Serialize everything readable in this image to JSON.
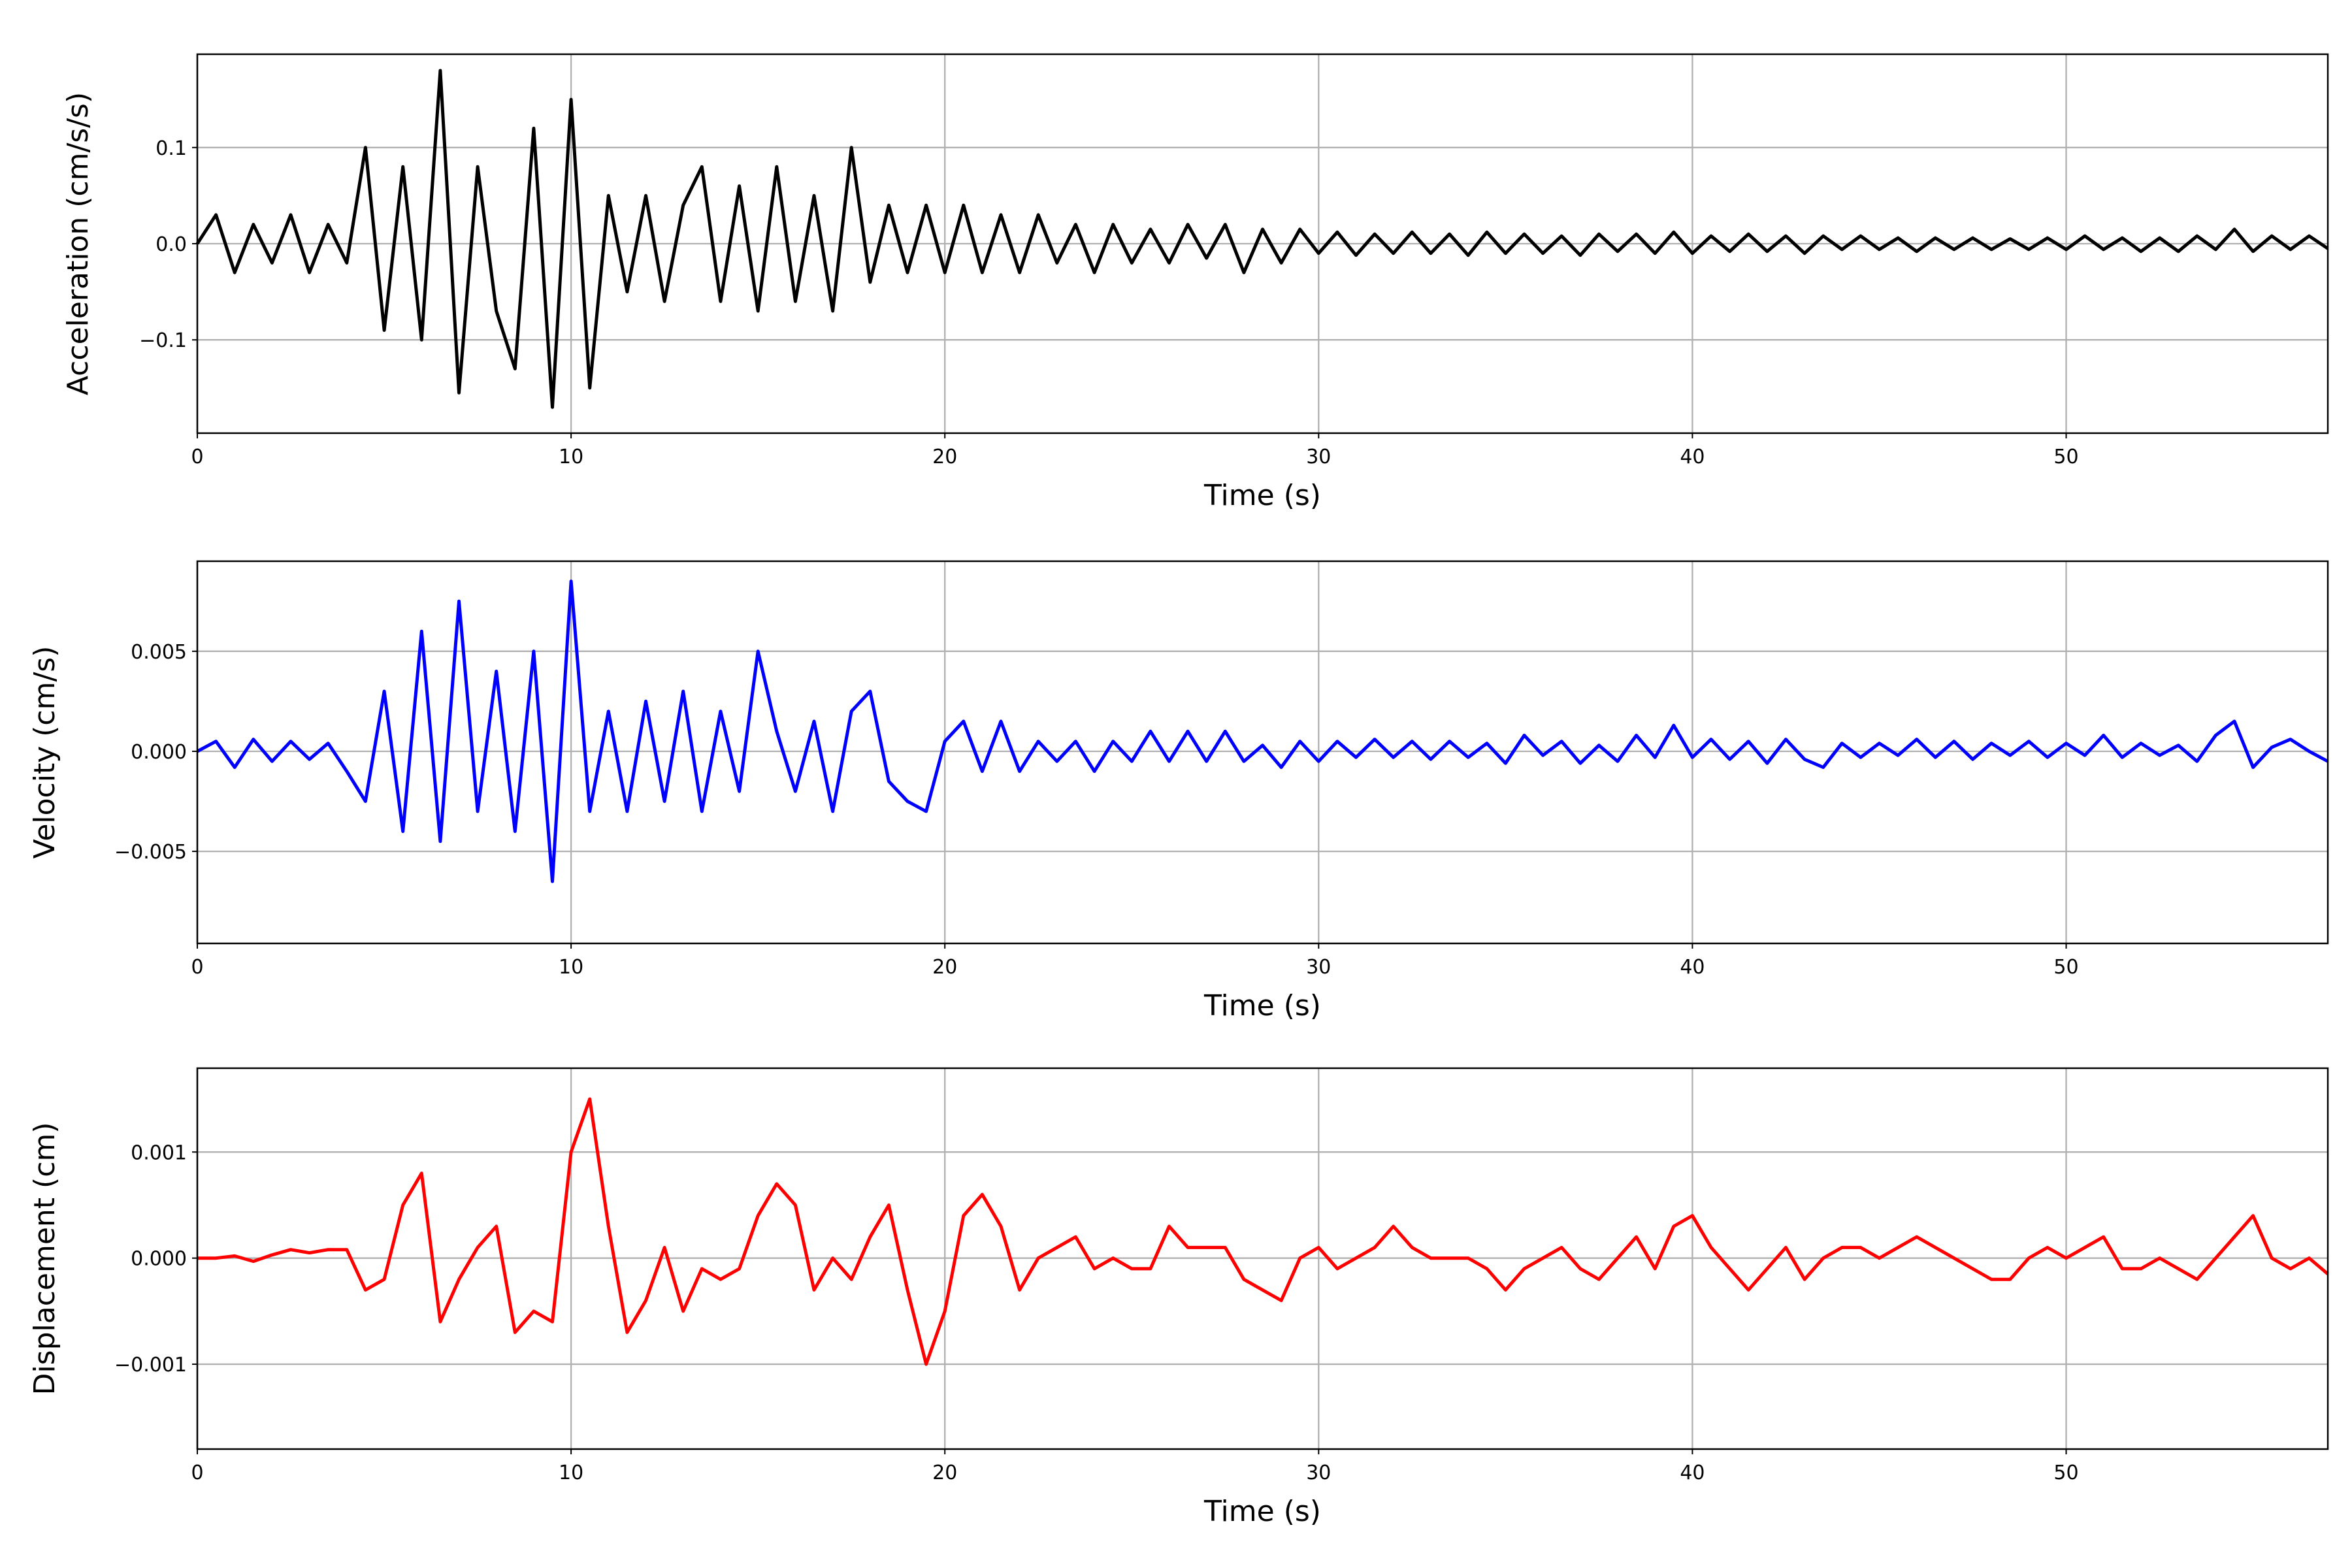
{
  "chart_data": [
    {
      "type": "line",
      "x_label": "Time (s)",
      "y_label": "Acceleration (cm/s/s)",
      "color": "#000000",
      "grid": true,
      "xlim": [
        0,
        57
      ],
      "ylim": [
        -0.197,
        0.197
      ],
      "xticks": [
        0,
        10,
        20,
        30,
        40,
        50
      ],
      "yticks": [
        {
          "value": -0.1,
          "label": "−0.1"
        },
        {
          "value": 0,
          "label": "0.0"
        },
        {
          "value": 0.1,
          "label": "0.1"
        }
      ],
      "x": [
        0,
        0.5,
        1,
        1.5,
        2,
        2.5,
        3,
        3.5,
        4,
        4.5,
        5,
        5.5,
        6,
        6.5,
        7,
        7.5,
        8,
        8.5,
        9,
        9.5,
        10,
        10.5,
        11,
        11.5,
        12,
        12.5,
        13,
        13.5,
        14,
        14.5,
        15,
        15.5,
        16,
        16.5,
        17,
        17.5,
        18,
        18.5,
        19,
        19.5,
        20,
        20.5,
        21,
        21.5,
        22,
        22.5,
        23,
        23.5,
        24,
        24.5,
        25,
        25.5,
        26,
        26.5,
        27,
        27.5,
        28,
        28.5,
        29,
        29.5,
        30,
        30.5,
        31,
        31.5,
        32,
        32.5,
        33,
        33.5,
        34,
        34.5,
        35,
        35.5,
        36,
        36.5,
        37,
        37.5,
        38,
        38.5,
        39,
        39.5,
        40,
        40.5,
        41,
        41.5,
        42,
        42.5,
        43,
        43.5,
        44,
        44.5,
        45,
        45.5,
        46,
        46.5,
        47,
        47.5,
        48,
        48.5,
        49,
        49.5,
        50,
        50.5,
        51,
        51.5,
        52,
        52.5,
        53,
        53.5,
        54,
        54.5,
        55,
        55.5,
        56,
        56.5,
        57
      ],
      "values": [
        0,
        0.03,
        -0.03,
        0.02,
        -0.02,
        0.03,
        -0.03,
        0.02,
        -0.02,
        0.1,
        -0.09,
        0.08,
        -0.1,
        0.18,
        -0.155,
        0.08,
        -0.07,
        -0.13,
        0.12,
        -0.17,
        0.15,
        -0.15,
        0.05,
        -0.05,
        0.05,
        -0.06,
        0.04,
        0.08,
        -0.06,
        0.06,
        -0.07,
        0.08,
        -0.06,
        0.05,
        -0.07,
        0.1,
        -0.04,
        0.04,
        -0.03,
        0.04,
        -0.03,
        0.04,
        -0.03,
        0.03,
        -0.03,
        0.03,
        -0.02,
        0.02,
        -0.03,
        0.02,
        -0.02,
        0.015,
        -0.02,
        0.02,
        -0.015,
        0.02,
        -0.03,
        0.015,
        -0.02,
        0.015,
        -0.01,
        0.012,
        -0.012,
        0.01,
        -0.01,
        0.012,
        -0.01,
        0.01,
        -0.012,
        0.012,
        -0.01,
        0.01,
        -0.01,
        0.008,
        -0.012,
        0.01,
        -0.008,
        0.01,
        -0.01,
        0.012,
        -0.01,
        0.008,
        -0.008,
        0.01,
        -0.008,
        0.008,
        -0.01,
        0.008,
        -0.006,
        0.008,
        -0.006,
        0.006,
        -0.008,
        0.006,
        -0.006,
        0.006,
        -0.006,
        0.005,
        -0.006,
        0.006,
        -0.006,
        0.008,
        -0.006,
        0.006,
        -0.008,
        0.006,
        -0.008,
        0.008,
        -0.006,
        0.015,
        -0.008,
        0.008,
        -0.006,
        0.008,
        -0.005
      ]
    },
    {
      "type": "line",
      "x_label": "Time (s)",
      "y_label": "Velocity (cm/s)",
      "color": "#0000ff",
      "grid": true,
      "xlim": [
        0,
        57
      ],
      "ylim": [
        -0.0096,
        0.0095
      ],
      "xticks": [
        0,
        10,
        20,
        30,
        40,
        50
      ],
      "yticks": [
        {
          "value": -0.005,
          "label": "−0.005"
        },
        {
          "value": 0,
          "label": "0.000"
        },
        {
          "value": 0.005,
          "label": "0.005"
        }
      ],
      "x": [
        0,
        0.5,
        1,
        1.5,
        2,
        2.5,
        3,
        3.5,
        4,
        4.5,
        5,
        5.5,
        6,
        6.5,
        7,
        7.5,
        8,
        8.5,
        9,
        9.5,
        10,
        10.5,
        11,
        11.5,
        12,
        12.5,
        13,
        13.5,
        14,
        14.5,
        15,
        15.5,
        16,
        16.5,
        17,
        17.5,
        18,
        18.5,
        19,
        19.5,
        20,
        20.5,
        21,
        21.5,
        22,
        22.5,
        23,
        23.5,
        24,
        24.5,
        25,
        25.5,
        26,
        26.5,
        27,
        27.5,
        28,
        28.5,
        29,
        29.5,
        30,
        30.5,
        31,
        31.5,
        32,
        32.5,
        33,
        33.5,
        34,
        34.5,
        35,
        35.5,
        36,
        36.5,
        37,
        37.5,
        38,
        38.5,
        39,
        39.5,
        40,
        40.5,
        41,
        41.5,
        42,
        42.5,
        43,
        43.5,
        44,
        44.5,
        45,
        45.5,
        46,
        46.5,
        47,
        47.5,
        48,
        48.5,
        49,
        49.5,
        50,
        50.5,
        51,
        51.5,
        52,
        52.5,
        53,
        53.5,
        54,
        54.5,
        55,
        55.5,
        56,
        56.5,
        57
      ],
      "values": [
        0,
        0.0005,
        -0.0008,
        0.0006,
        -0.0005,
        0.0005,
        -0.0004,
        0.0004,
        -0.001,
        -0.0025,
        0.003,
        -0.004,
        0.006,
        -0.0045,
        0.0075,
        -0.003,
        0.004,
        -0.004,
        0.005,
        -0.0065,
        0.0085,
        -0.003,
        0.002,
        -0.003,
        0.0025,
        -0.0025,
        0.003,
        -0.003,
        0.002,
        -0.002,
        0.005,
        0.001,
        -0.002,
        0.0015,
        -0.003,
        0.002,
        0.003,
        -0.0015,
        -0.0025,
        -0.003,
        0.0005,
        0.0015,
        -0.001,
        0.0015,
        -0.001,
        0.0005,
        -0.0005,
        0.0005,
        -0.001,
        0.0005,
        -0.0005,
        0.001,
        -0.0005,
        0.001,
        -0.0005,
        0.001,
        -0.0005,
        0.0003,
        -0.0008,
        0.0005,
        -0.0005,
        0.0005,
        -0.0003,
        0.0006,
        -0.0003,
        0.0005,
        -0.0004,
        0.0005,
        -0.0003,
        0.0004,
        -0.0006,
        0.0008,
        -0.0002,
        0.0005,
        -0.0006,
        0.0003,
        -0.0005,
        0.0008,
        -0.0003,
        0.0013,
        -0.0003,
        0.0006,
        -0.0004,
        0.0005,
        -0.0006,
        0.0006,
        -0.0004,
        -0.0008,
        0.0004,
        -0.0003,
        0.0004,
        -0.0002,
        0.0006,
        -0.0003,
        0.0005,
        -0.0004,
        0.0004,
        -0.0002,
        0.0005,
        -0.0003,
        0.0004,
        -0.0002,
        0.0008,
        -0.0003,
        0.0004,
        -0.0002,
        0.0003,
        -0.0005,
        0.0008,
        0.0015,
        -0.0008,
        0.0002,
        0.0006,
        0,
        -0.0005
      ]
    },
    {
      "type": "line",
      "x_label": "Time (s)",
      "y_label": "Displacement (cm)",
      "color": "#ff0000",
      "grid": true,
      "xlim": [
        0,
        57
      ],
      "ylim": [
        -0.0018,
        0.00179
      ],
      "xticks": [
        0,
        10,
        20,
        30,
        40,
        50
      ],
      "yticks": [
        {
          "value": -0.001,
          "label": "−0.001"
        },
        {
          "value": 0,
          "label": "0.000"
        },
        {
          "value": 0.001,
          "label": "0.001"
        }
      ],
      "x": [
        0,
        0.5,
        1,
        1.5,
        2,
        2.5,
        3,
        3.5,
        4,
        4.5,
        5,
        5.5,
        6,
        6.5,
        7,
        7.5,
        8,
        8.5,
        9,
        9.5,
        10,
        10.5,
        11,
        11.5,
        12,
        12.5,
        13,
        13.5,
        14,
        14.5,
        15,
        15.5,
        16,
        16.5,
        17,
        17.5,
        18,
        18.5,
        19,
        19.5,
        20,
        20.5,
        21,
        21.5,
        22,
        22.5,
        23,
        23.5,
        24,
        24.5,
        25,
        25.5,
        26,
        26.5,
        27,
        27.5,
        28,
        28.5,
        29,
        29.5,
        30,
        30.5,
        31,
        31.5,
        32,
        32.5,
        33,
        33.5,
        34,
        34.5,
        35,
        35.5,
        36,
        36.5,
        37,
        37.5,
        38,
        38.5,
        39,
        39.5,
        40,
        40.5,
        41,
        41.5,
        42,
        42.5,
        43,
        43.5,
        44,
        44.5,
        45,
        45.5,
        46,
        46.5,
        47,
        47.5,
        48,
        48.5,
        49,
        49.5,
        50,
        50.5,
        51,
        51.5,
        52,
        52.5,
        53,
        53.5,
        54,
        54.5,
        55,
        55.5,
        56,
        56.5,
        57
      ],
      "values": [
        0,
        0,
        2e-05,
        -3e-05,
        3e-05,
        8e-05,
        5e-05,
        8e-05,
        8e-05,
        -0.0003,
        -0.0002,
        0.0005,
        0.0008,
        -0.0006,
        -0.0002,
        0.0001,
        0.0003,
        -0.0007,
        -0.0005,
        -0.0006,
        0.001,
        0.0015,
        0.0003,
        -0.0007,
        -0.0004,
        0.0001,
        -0.0005,
        -0.0001,
        -0.0002,
        -0.0001,
        0.0004,
        0.0007,
        0.0005,
        -0.0003,
        0,
        -0.0002,
        0.0002,
        0.0005,
        -0.0003,
        -0.001,
        -0.0005,
        0.0004,
        0.0006,
        0.0003,
        -0.0003,
        0,
        0.0001,
        0.0002,
        -0.0001,
        0,
        -0.0001,
        -0.0001,
        0.0003,
        0.0001,
        0.0001,
        0.0001,
        -0.0002,
        -0.0003,
        -0.0004,
        0,
        0.0001,
        -0.0001,
        0,
        0.0001,
        0.0003,
        0.0001,
        0,
        0,
        0,
        -0.0001,
        -0.0003,
        -0.0001,
        0,
        0.0001,
        -0.0001,
        -0.0002,
        0,
        0.0002,
        -0.0001,
        0.0003,
        0.0004,
        0.0001,
        -0.0001,
        -0.0003,
        -0.0001,
        0.0001,
        -0.0002,
        0,
        0.0001,
        0.0001,
        0,
        0.0001,
        0.0002,
        0.0001,
        0,
        -0.0001,
        -0.0002,
        -0.0002,
        0,
        0.0001,
        0,
        0.0001,
        0.0002,
        -0.0001,
        -0.0001,
        0,
        -0.0001,
        -0.0002,
        0,
        0.0002,
        0.0004,
        0,
        -0.0001,
        0,
        -0.00015
      ]
    }
  ]
}
